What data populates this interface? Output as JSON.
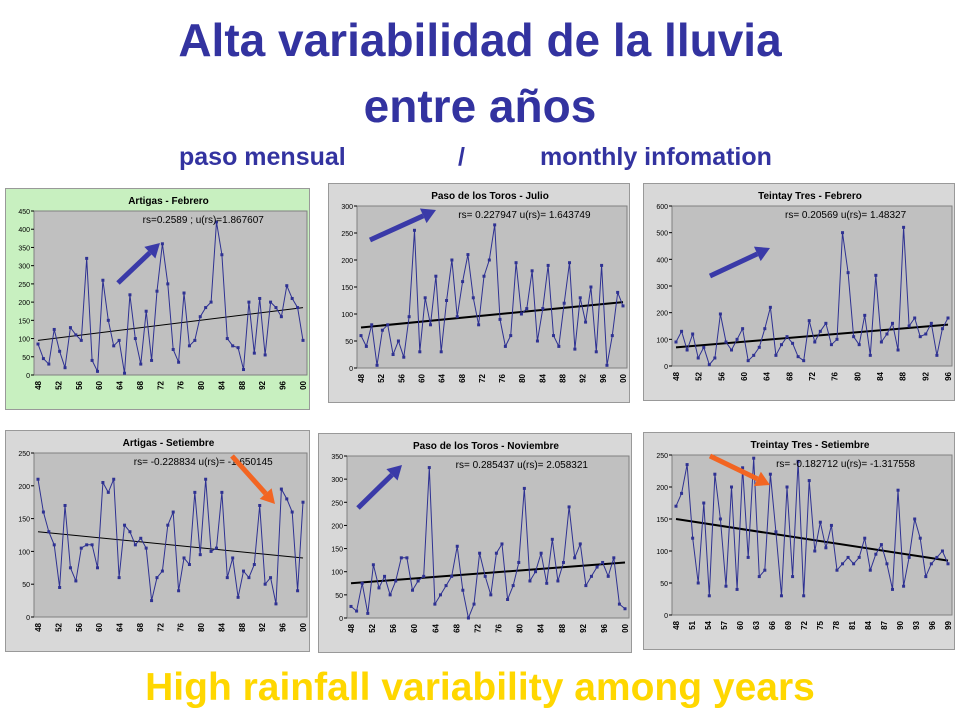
{
  "title_line1": "Alta variabilidad de la lluvia",
  "title_line2": "entre años",
  "subtitle_left": "paso mensual",
  "subtitle_sep": "/",
  "subtitle_right": "monthly infomation",
  "footer": "High rainfall variability among years",
  "colors": {
    "title": "#3333a0",
    "footer": "#ffd700",
    "line": "#2e3192",
    "up_arrow": "#3a3aa8",
    "down_arrow": "#f26522"
  },
  "chart_data": [
    {
      "type": "line",
      "title": "Artigas - Febrero",
      "annotation": "rs=0.2589 ; u(rs)=1.867607",
      "bg": "#c8f0c0",
      "ylim": [
        0,
        450
      ],
      "yticks": [
        0,
        50,
        100,
        150,
        200,
        250,
        300,
        350,
        400,
        450
      ],
      "xtick_labels": [
        "48",
        "52",
        "56",
        "60",
        "64",
        "68",
        "72",
        "76",
        "80",
        "84",
        "88",
        "92",
        "96",
        "00"
      ],
      "trend_start": 95,
      "trend_end": 185,
      "arrow": "up",
      "values": [
        85,
        45,
        30,
        125,
        65,
        20,
        130,
        110,
        95,
        320,
        40,
        10,
        260,
        150,
        80,
        95,
        5,
        220,
        100,
        30,
        175,
        40,
        230,
        360,
        250,
        70,
        35,
        225,
        80,
        95,
        160,
        185,
        200,
        420,
        330,
        100,
        80,
        75,
        15,
        200,
        60,
        210,
        55,
        200,
        185,
        160,
        245,
        210,
        185,
        95
      ]
    },
    {
      "type": "line",
      "title": "Paso de los Toros - Julio",
      "annotation": "rs= 0.227947 u(rs)= 1.643749",
      "bg": "#d8d8d8",
      "ylim": [
        0,
        300
      ],
      "yticks": [
        0,
        50,
        100,
        150,
        200,
        250,
        300
      ],
      "xtick_labels": [
        "48",
        "52",
        "56",
        "60",
        "64",
        "68",
        "72",
        "76",
        "80",
        "84",
        "88",
        "92",
        "96",
        "00"
      ],
      "trend_start": 75,
      "trend_end": 122,
      "arrow": "up",
      "values": [
        60,
        40,
        80,
        5,
        70,
        80,
        25,
        50,
        20,
        95,
        255,
        30,
        130,
        80,
        170,
        30,
        125,
        200,
        95,
        160,
        210,
        130,
        80,
        170,
        200,
        265,
        90,
        40,
        60,
        195,
        100,
        110,
        180,
        50,
        110,
        190,
        60,
        40,
        120,
        195,
        35,
        130,
        85,
        150,
        30,
        190,
        5,
        60,
        140,
        115
      ]
    },
    {
      "type": "line",
      "title": "Teintay Tres - Febrero",
      "annotation": "rs= 0.20569 u(rs)= 1.48327",
      "bg": "#d8d8d8",
      "ylim": [
        0,
        600
      ],
      "yticks": [
        0,
        100,
        200,
        300,
        400,
        500,
        600
      ],
      "xtick_labels": [
        "48",
        "52",
        "56",
        "60",
        "64",
        "68",
        "72",
        "76",
        "80",
        "84",
        "88",
        "92",
        "96"
      ],
      "trend_start": 70,
      "trend_end": 155,
      "arrow": "up",
      "values": [
        90,
        130,
        60,
        120,
        30,
        70,
        5,
        30,
        195,
        90,
        60,
        100,
        140,
        20,
        40,
        70,
        140,
        220,
        40,
        80,
        110,
        85,
        35,
        20,
        170,
        90,
        130,
        160,
        80,
        100,
        500,
        350,
        110,
        80,
        190,
        40,
        340,
        90,
        120,
        160,
        60,
        520,
        150,
        180,
        110,
        120,
        160,
        40,
        140,
        180
      ]
    },
    {
      "type": "line",
      "title": "Artigas - Setiembre",
      "annotation": "rs= -0.228834 u(rs)= -1.650145",
      "bg": "#d8d8d8",
      "ylim": [
        0,
        250
      ],
      "yticks": [
        0,
        50,
        100,
        150,
        200,
        250
      ],
      "xtick_labels": [
        "48",
        "52",
        "56",
        "60",
        "64",
        "68",
        "72",
        "76",
        "80",
        "84",
        "88",
        "92",
        "96",
        "00"
      ],
      "trend_start": 130,
      "trend_end": 90,
      "arrow": "down",
      "values": [
        210,
        160,
        130,
        110,
        45,
        170,
        75,
        55,
        105,
        110,
        110,
        75,
        205,
        190,
        210,
        60,
        140,
        130,
        110,
        120,
        105,
        25,
        60,
        70,
        140,
        160,
        40,
        90,
        80,
        190,
        95,
        210,
        100,
        105,
        190,
        60,
        90,
        30,
        70,
        60,
        80,
        170,
        50,
        60,
        20,
        195,
        180,
        160,
        40,
        175
      ]
    },
    {
      "type": "line",
      "title": "Paso de los Toros - Noviembre",
      "annotation": "rs= 0.285437 u(rs)= 2.058321",
      "bg": "#d8d8d8",
      "ylim": [
        0,
        350
      ],
      "yticks": [
        0,
        50,
        100,
        150,
        200,
        250,
        300,
        350
      ],
      "xtick_labels": [
        "48",
        "52",
        "56",
        "60",
        "64",
        "68",
        "72",
        "76",
        "80",
        "84",
        "88",
        "92",
        "96",
        "00"
      ],
      "trend_start": 75,
      "trend_end": 120,
      "arrow": "up",
      "values": [
        25,
        15,
        75,
        10,
        115,
        65,
        90,
        50,
        80,
        130,
        130,
        60,
        80,
        90,
        325,
        30,
        50,
        70,
        90,
        155,
        60,
        0,
        30,
        140,
        90,
        50,
        140,
        160,
        40,
        70,
        120,
        280,
        80,
        100,
        140,
        75,
        170,
        80,
        120,
        240,
        130,
        160,
        70,
        90,
        110,
        120,
        90,
        130,
        30,
        20
      ]
    },
    {
      "type": "line",
      "title": "Treintay Tres - Setiembre",
      "annotation": "rs= -0.182712 u(rs)= -1.317558",
      "bg": "#d8d8d8",
      "ylim": [
        0,
        250
      ],
      "yticks": [
        0,
        50,
        100,
        150,
        200,
        250
      ],
      "xtick_labels": [
        "48",
        "51",
        "54",
        "57",
        "60",
        "63",
        "66",
        "69",
        "72",
        "75",
        "78",
        "81",
        "84",
        "87",
        "90",
        "93",
        "96",
        "99"
      ],
      "trend_start": 150,
      "trend_end": 85,
      "arrow": "down",
      "values": [
        170,
        190,
        235,
        120,
        50,
        175,
        30,
        220,
        150,
        45,
        200,
        40,
        230,
        90,
        245,
        60,
        70,
        220,
        130,
        30,
        200,
        60,
        240,
        30,
        210,
        100,
        145,
        105,
        140,
        70,
        80,
        90,
        80,
        90,
        120,
        70,
        95,
        110,
        80,
        40,
        195,
        45,
        90,
        150,
        120,
        60,
        80,
        90,
        100,
        80
      ]
    }
  ]
}
